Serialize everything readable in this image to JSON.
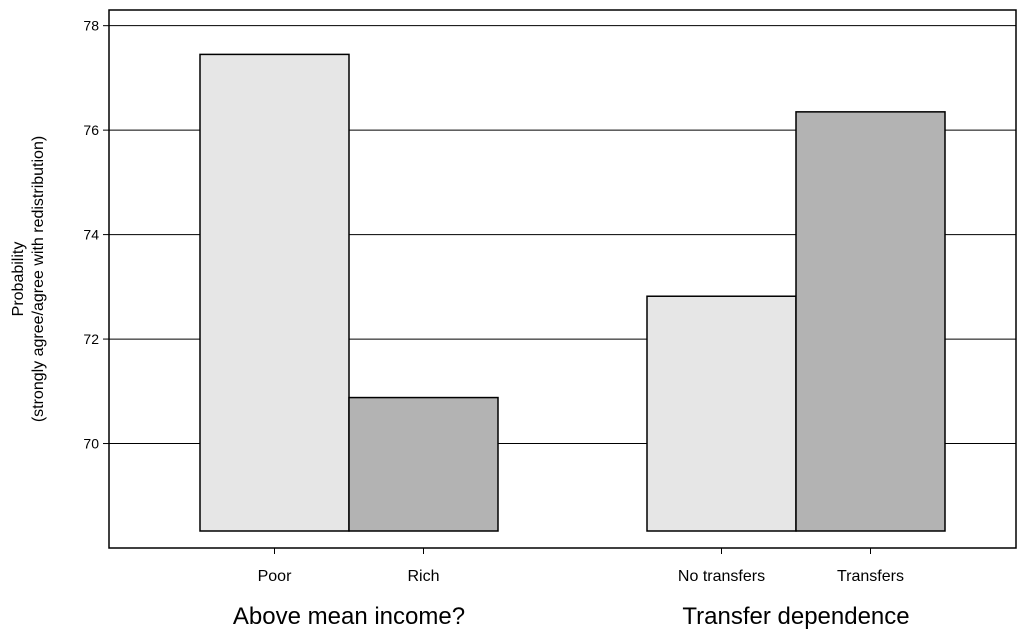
{
  "chart_data": {
    "type": "bar",
    "title": "",
    "ylabel_lines": [
      "Probability",
      "(strongly agree/agree with redistribution)"
    ],
    "ylim": [
      68,
      78.3
    ],
    "yticks": [
      70,
      72,
      74,
      76,
      78
    ],
    "grid": "horizontal",
    "groups": [
      {
        "label": "Above mean income?",
        "bars": [
          {
            "label": "Poor",
            "value": 77.45,
            "color": "#e6e6e6"
          },
          {
            "label": "Rich",
            "value": 70.88,
            "color": "#b3b3b3"
          }
        ]
      },
      {
        "label": "Transfer dependence",
        "bars": [
          {
            "label": "No transfers",
            "value": 72.82,
            "color": "#e6e6e6"
          },
          {
            "label": "Transfers",
            "value": 76.35,
            "color": "#b3b3b3"
          }
        ]
      }
    ]
  }
}
